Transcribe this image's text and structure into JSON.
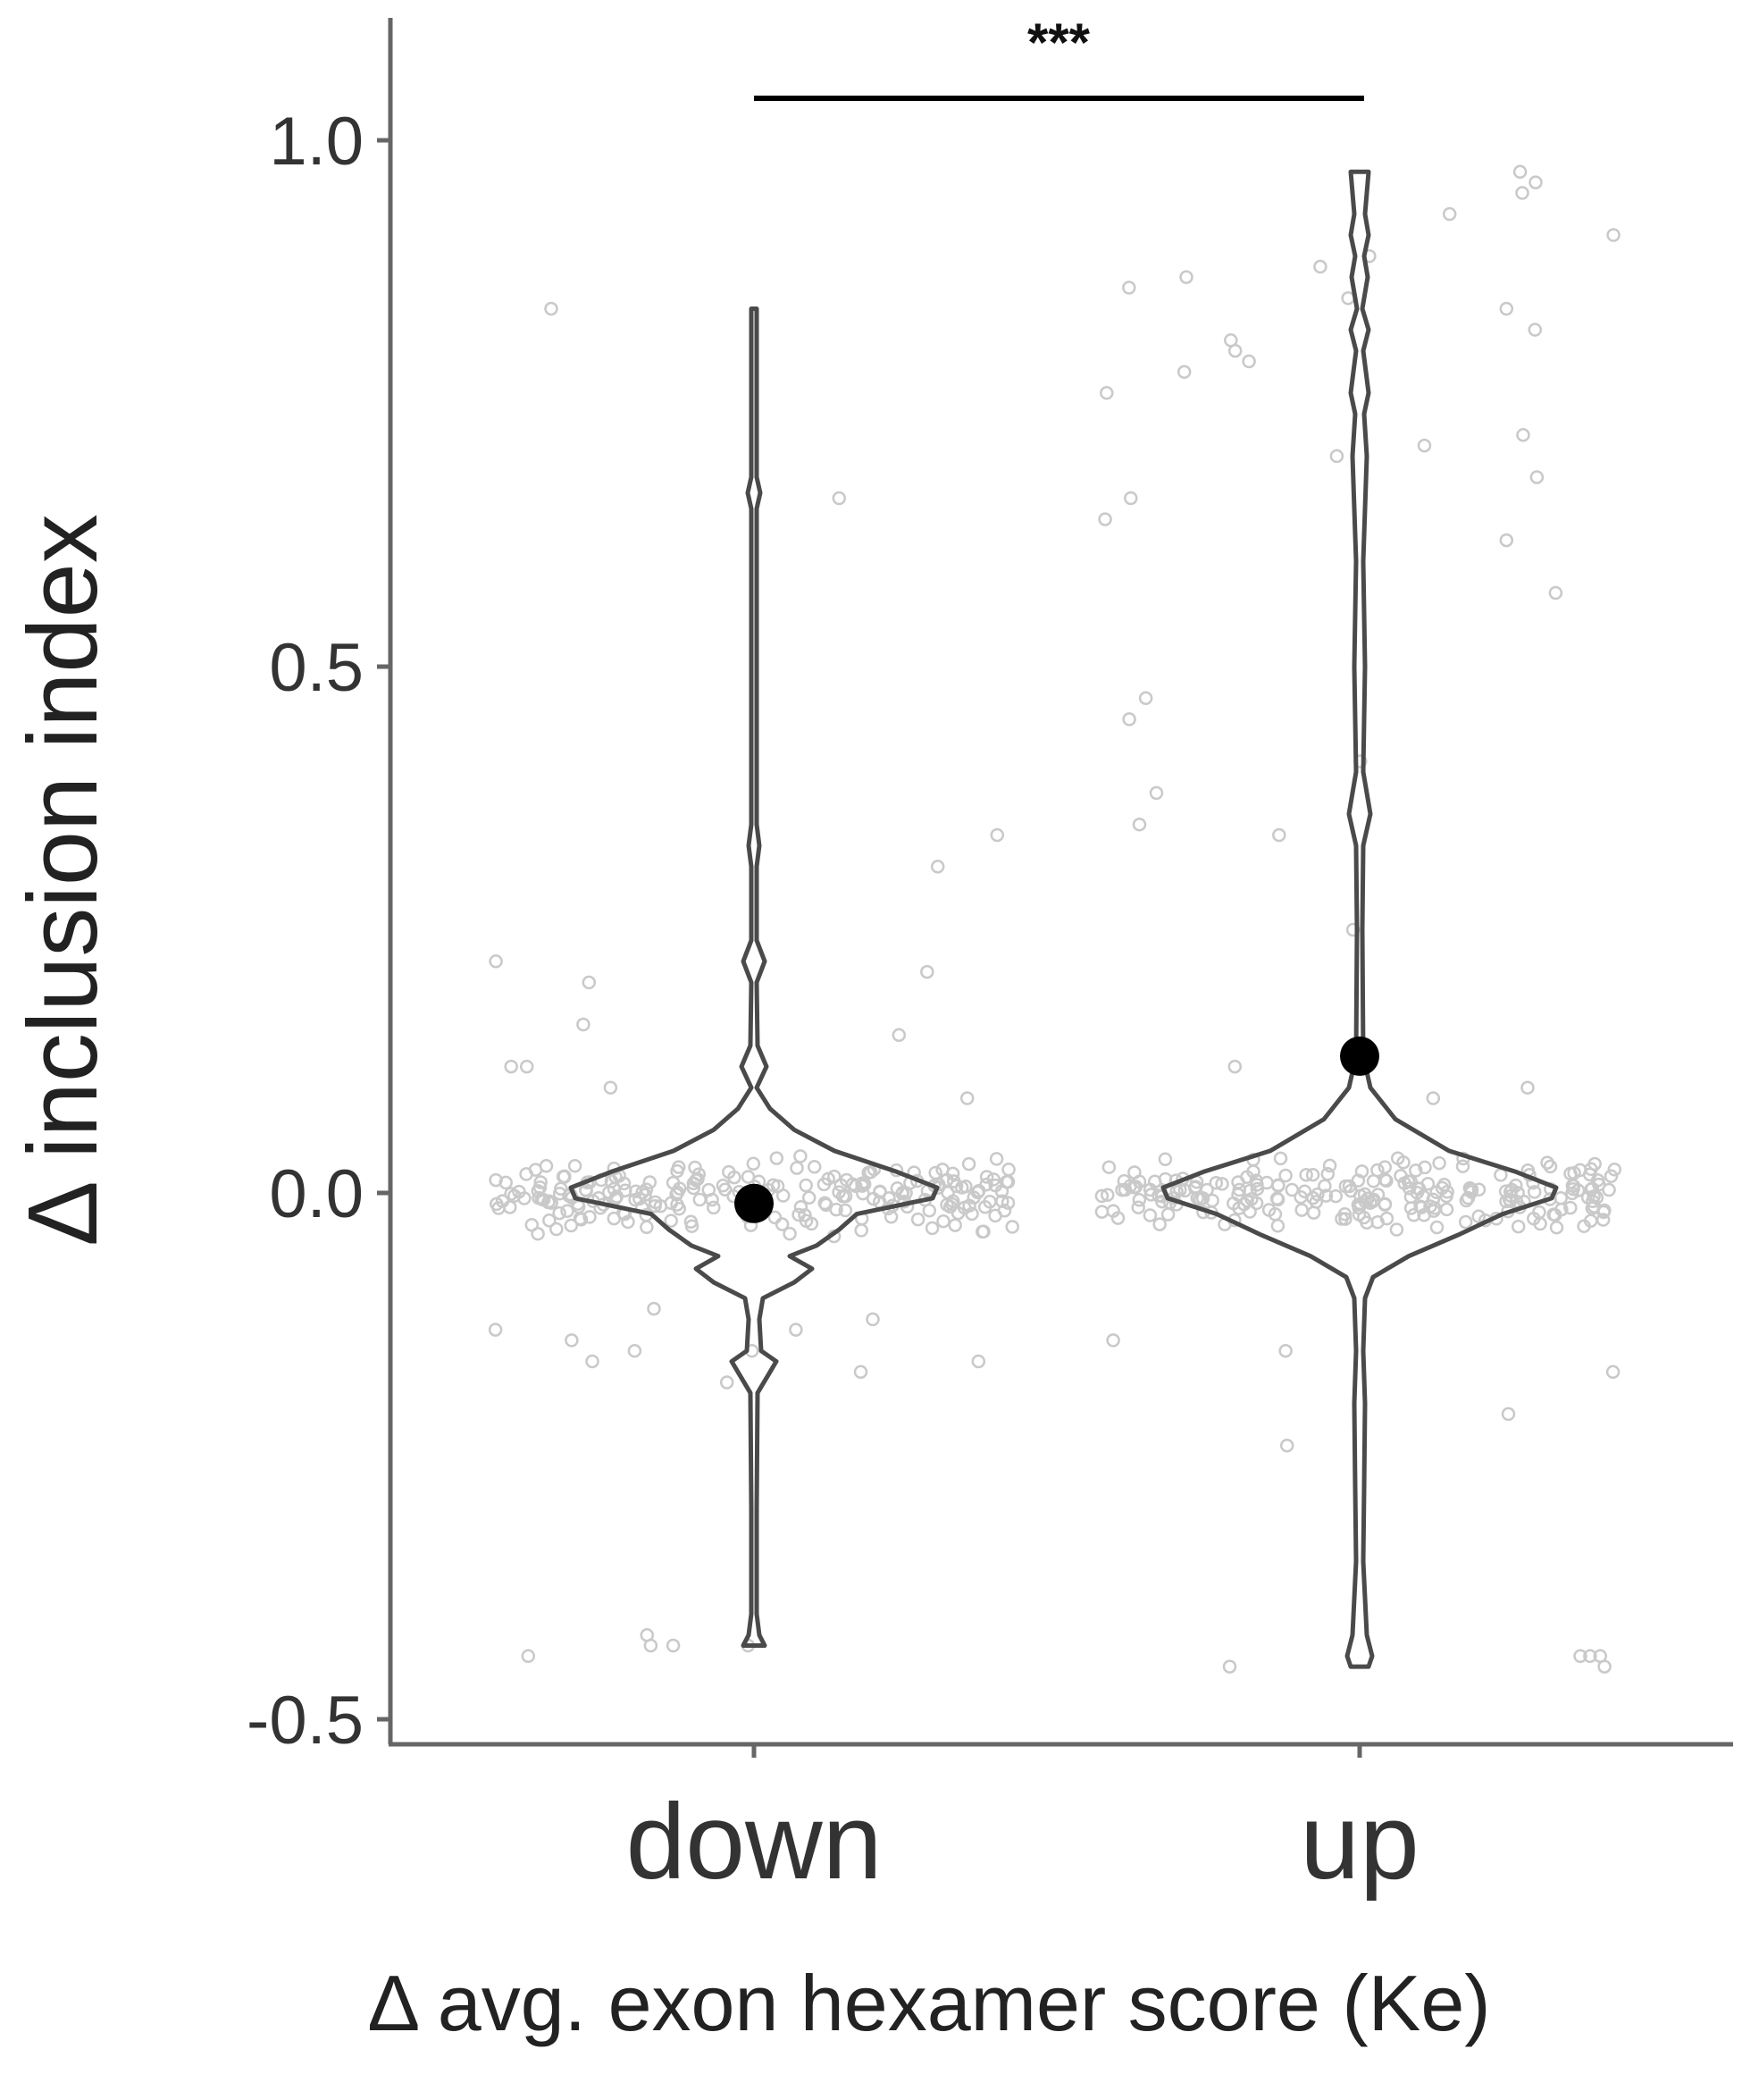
{
  "chart_data": {
    "type": "violin",
    "categories": [
      "down",
      "up"
    ],
    "xlabel": "Δ avg. exon hexamer score (Ke)",
    "ylabel": "Δ inclusion index",
    "ylim": [
      -0.52,
      1.12
    ],
    "yticks": [
      -0.5,
      0.0,
      0.5,
      1.0
    ],
    "ytick_labels": [
      "-0.5",
      "0.0",
      "0.5",
      "1.0"
    ],
    "grid": false,
    "legend": "none",
    "significance": {
      "between": [
        "down",
        "up"
      ],
      "label": "***"
    },
    "means": [
      {
        "category": "down",
        "value": -0.01
      },
      {
        "category": "up",
        "value": 0.13
      }
    ],
    "range": [
      {
        "category": "down",
        "min": -0.43,
        "max": 0.84
      },
      {
        "category": "up",
        "min": -0.45,
        "max": 0.97
      }
    ],
    "point_color": "#c9c9c9",
    "violin_color": "#4a4a4a",
    "mean_color": "#000000"
  }
}
